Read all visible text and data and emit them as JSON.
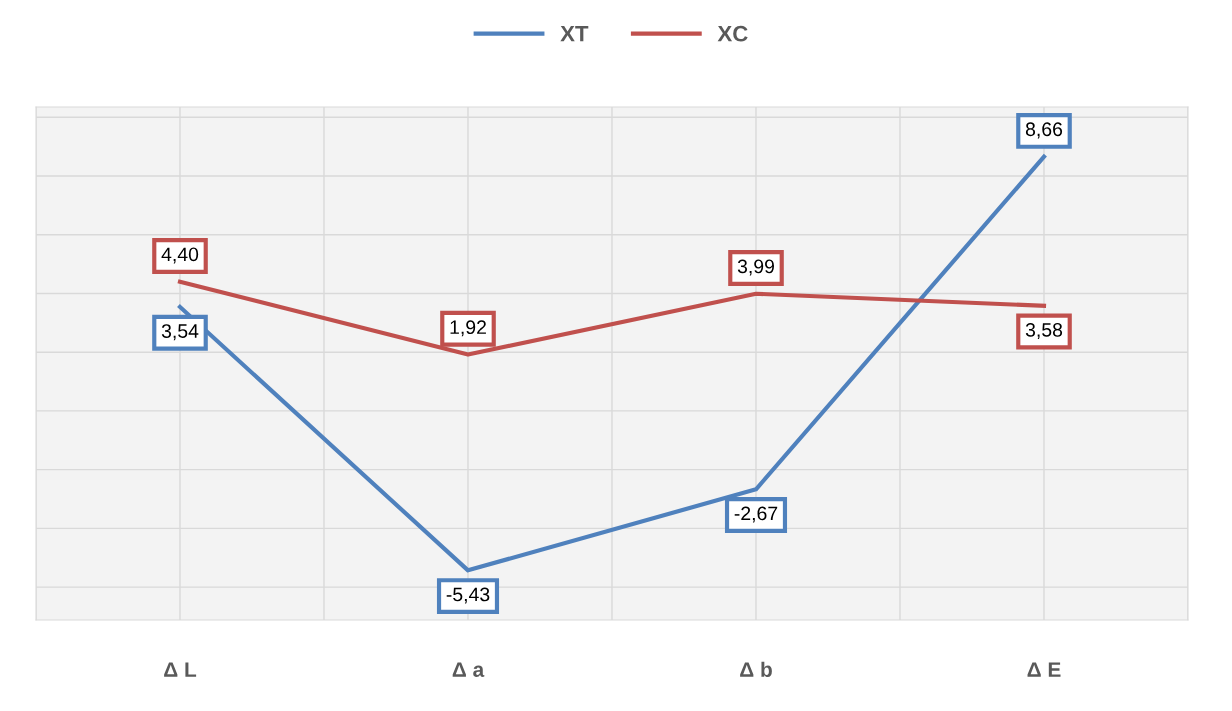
{
  "chart_data": {
    "type": "line",
    "categories": [
      "Δ L",
      "Δ a",
      "Δ b",
      "Δ E"
    ],
    "series": [
      {
        "name": "XT",
        "color": "#4f81bd",
        "values": [
          3.54,
          -5.43,
          -2.67,
          8.66
        ],
        "value_labels": [
          "3,54",
          "-5,43",
          "-2,67",
          "8,66"
        ]
      },
      {
        "name": "XC",
        "color": "#c0504d",
        "values": [
          4.4,
          1.92,
          3.99,
          3.58
        ],
        "value_labels": [
          "4,40",
          "1,92",
          "3,99",
          "3,58"
        ]
      }
    ],
    "tick_labels": "x",
    "grid": true,
    "legend": "top",
    "marker": "none",
    "line_style": "solid"
  }
}
